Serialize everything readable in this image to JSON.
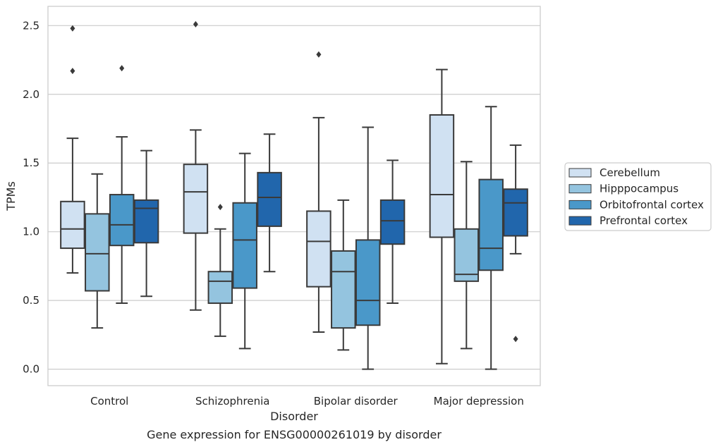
{
  "chart_data": {
    "type": "boxplot",
    "caption": "Gene expression for ENSG00000261019 by disorder",
    "xlabel": "Disorder",
    "ylabel": "TPMs",
    "ylim": [
      -0.12,
      2.64
    ],
    "yticks": [
      0.0,
      0.5,
      1.0,
      1.5,
      2.0,
      2.5
    ],
    "ytick_labels": [
      "0.0",
      "0.5",
      "1.0",
      "1.5",
      "2.0",
      "2.5"
    ],
    "grid": "horizontal",
    "legend_position": "right",
    "categories": [
      "Control",
      "Schizophrenia",
      "Bipolar disorder",
      "Major depression"
    ],
    "series": [
      {
        "name": "Cerebellum",
        "color": "#d0e1f2",
        "boxes": [
          {
            "whislo": 0.7,
            "q1": 0.88,
            "med": 1.02,
            "q3": 1.22,
            "whishi": 1.68,
            "fliers": [
              2.17,
              2.48
            ]
          },
          {
            "whislo": 0.43,
            "q1": 0.99,
            "med": 1.29,
            "q3": 1.49,
            "whishi": 1.74,
            "fliers": [
              2.51
            ]
          },
          {
            "whislo": 0.27,
            "q1": 0.6,
            "med": 0.93,
            "q3": 1.15,
            "whishi": 1.83,
            "fliers": [
              2.29
            ]
          },
          {
            "whislo": 0.04,
            "q1": 0.96,
            "med": 1.27,
            "q3": 1.85,
            "whishi": 2.18,
            "fliers": []
          }
        ]
      },
      {
        "name": "Hipppocampus",
        "color": "#94c4df",
        "boxes": [
          {
            "whislo": 0.3,
            "q1": 0.57,
            "med": 0.84,
            "q3": 1.13,
            "whishi": 1.42,
            "fliers": []
          },
          {
            "whislo": 0.24,
            "q1": 0.48,
            "med": 0.64,
            "q3": 0.71,
            "whishi": 1.02,
            "fliers": [
              1.18
            ]
          },
          {
            "whislo": 0.14,
            "q1": 0.3,
            "med": 0.71,
            "q3": 0.86,
            "whishi": 1.23,
            "fliers": []
          },
          {
            "whislo": 0.15,
            "q1": 0.64,
            "med": 0.69,
            "q3": 1.02,
            "whishi": 1.51,
            "fliers": []
          }
        ]
      },
      {
        "name": "Orbitofrontal cortex",
        "color": "#4a98c9",
        "boxes": [
          {
            "whislo": 0.48,
            "q1": 0.9,
            "med": 1.05,
            "q3": 1.27,
            "whishi": 1.69,
            "fliers": [
              2.19
            ]
          },
          {
            "whislo": 0.15,
            "q1": 0.59,
            "med": 0.94,
            "q3": 1.21,
            "whishi": 1.57,
            "fliers": []
          },
          {
            "whislo": 0.0,
            "q1": 0.32,
            "med": 0.5,
            "q3": 0.94,
            "whishi": 1.76,
            "fliers": []
          },
          {
            "whislo": 0.0,
            "q1": 0.72,
            "med": 0.88,
            "q3": 1.38,
            "whishi": 1.91,
            "fliers": []
          }
        ]
      },
      {
        "name": "Prefrontal cortex",
        "color": "#2166ac",
        "boxes": [
          {
            "whislo": 0.53,
            "q1": 0.92,
            "med": 1.17,
            "q3": 1.23,
            "whishi": 1.59,
            "fliers": []
          },
          {
            "whislo": 0.71,
            "q1": 1.04,
            "med": 1.25,
            "q3": 1.43,
            "whishi": 1.71,
            "fliers": []
          },
          {
            "whislo": 0.48,
            "q1": 0.91,
            "med": 1.08,
            "q3": 1.23,
            "whishi": 1.52,
            "fliers": []
          },
          {
            "whislo": 0.84,
            "q1": 0.97,
            "med": 1.21,
            "q3": 1.31,
            "whishi": 1.63,
            "fliers": [
              0.22
            ]
          }
        ]
      }
    ],
    "colors": {
      "edge": "#3a3a3a",
      "grid": "#cccccc",
      "frame": "#cccccc"
    }
  }
}
